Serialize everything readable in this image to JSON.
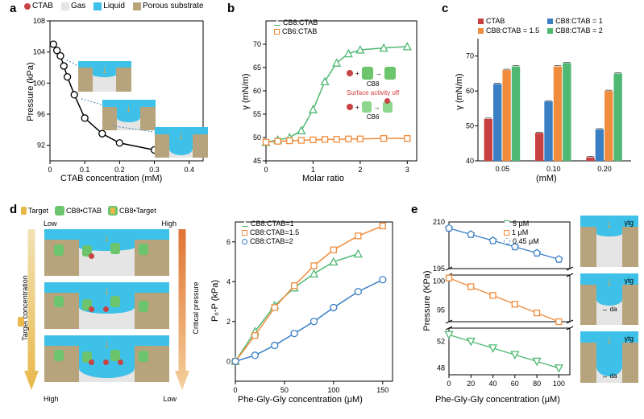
{
  "legend_top": {
    "ctab": "CTAB",
    "gas": "Gas",
    "liquid": "Liquid",
    "porous": "Porous substrate",
    "ctab_color": "#c84343",
    "gas_color": "#e5e5e5",
    "liquid_color": "#3ec1e8",
    "porous_color": "#b7a47d"
  },
  "panel_a": {
    "label": "a",
    "xlabel": "CTAB concentration (mM)",
    "ylabel": "Pressure (kPa)",
    "xlim": [
      0,
      0.44
    ],
    "ylim": [
      90,
      108
    ],
    "xticks": [
      0,
      0.1,
      0.2,
      0.3,
      0.4
    ],
    "yticks": [
      92,
      96,
      100,
      104,
      108
    ],
    "points_x": [
      0.01,
      0.02,
      0.03,
      0.04,
      0.05,
      0.07,
      0.1,
      0.15,
      0.2,
      0.3,
      0.4
    ],
    "points_y": [
      105,
      104.2,
      103.5,
      102.2,
      100.8,
      98.5,
      95.5,
      93.5,
      92.3,
      91.4,
      91
    ],
    "line_color": "#000000",
    "marker_fill": "#ffffff",
    "marker_edge": "#000000",
    "background": "#ffffff",
    "axis_color": "#000000"
  },
  "panel_b": {
    "label": "b",
    "xlabel": "Molar ratio",
    "ylabel": "γ (mN/m)",
    "xlim": [
      0,
      3.2
    ],
    "ylim": [
      45,
      75
    ],
    "xticks": [
      0,
      1,
      2,
      3
    ],
    "yticks": [
      45,
      50,
      55,
      60,
      65,
      70
    ],
    "series": [
      {
        "name": "CB8:CTAB",
        "color": "#4fb873",
        "marker": "triangle",
        "x": [
          0,
          0.25,
          0.5,
          0.75,
          1.0,
          1.25,
          1.5,
          1.75,
          2.0,
          2.5,
          3.0
        ],
        "y": [
          49,
          49.5,
          50,
          51.5,
          56,
          62,
          66,
          68,
          68.8,
          69.2,
          69.5
        ]
      },
      {
        "name": "CB6:CTAB",
        "color": "#f08c3c",
        "marker": "square",
        "x": [
          0,
          0.25,
          0.5,
          0.75,
          1.0,
          1.25,
          1.5,
          1.75,
          2.0,
          2.5,
          3.0
        ],
        "y": [
          49,
          49.2,
          49.3,
          49.4,
          49.5,
          49.6,
          49.6,
          49.7,
          49.7,
          49.8,
          49.8
        ]
      }
    ],
    "inset_label1": "CB8",
    "inset_label2": "CB6",
    "inset_text": "Surface activity off",
    "inset_text_color": "#d83a3a"
  },
  "panel_c": {
    "label": "c",
    "xlabel": "(mM)",
    "ylabel": "γ (mN/m)",
    "xlim_categories": [
      "0.05",
      "0.10",
      "0.20"
    ],
    "ylim": [
      40,
      75
    ],
    "yticks": [
      40,
      50,
      60,
      70
    ],
    "series": [
      {
        "name": "CTAB",
        "color": "#c94040"
      },
      {
        "name": "CB8:CTAB = 1",
        "color": "#3a7fc4"
      },
      {
        "name": "CB8:CTAB = 1.5",
        "color": "#f08c3c"
      },
      {
        "name": "CB8:CTAB = 2",
        "color": "#4fb873"
      }
    ],
    "groups": [
      {
        "cat": "0.05",
        "vals": [
          52,
          62,
          66,
          67
        ]
      },
      {
        "cat": "0.10",
        "vals": [
          48,
          57,
          67,
          68
        ]
      },
      {
        "cat": "0.20",
        "vals": [
          41,
          49,
          60,
          65
        ]
      }
    ]
  },
  "panel_d": {
    "label": "d",
    "diagram_labels": {
      "target": "Target",
      "c1": "CB8•CTAB",
      "c2": "CB8•Target",
      "left_arrow": "Target concentration",
      "right_arrow": "Critical pressure",
      "low": "Low",
      "high": "High"
    },
    "chart": {
      "xlabel": "Phe-Gly-Gly concentration (μM)",
      "ylabel": "P₀-P  (kPa)",
      "xlim": [
        0,
        160
      ],
      "ylim": [
        -1,
        7
      ],
      "xticks": [
        0,
        50,
        100,
        150
      ],
      "yticks": [
        0,
        2,
        4,
        6
      ],
      "series": [
        {
          "name": "CB8:CTAB=1",
          "color": "#4fb873",
          "marker": "triangle",
          "x": [
            0,
            20,
            40,
            60,
            80,
            100,
            125
          ],
          "y": [
            0,
            1.5,
            2.8,
            3.7,
            4.4,
            5.0,
            5.4
          ]
        },
        {
          "name": "CB8:CTAB=1.5",
          "color": "#f08c3c",
          "marker": "square",
          "x": [
            0,
            20,
            40,
            60,
            80,
            100,
            125,
            150
          ],
          "y": [
            0,
            1.3,
            2.7,
            3.8,
            4.8,
            5.6,
            6.3,
            6.8
          ]
        },
        {
          "name": "CB8:CTAB=2",
          "color": "#3a7fc4",
          "marker": "circle",
          "x": [
            0,
            20,
            40,
            60,
            80,
            100,
            125,
            150
          ],
          "y": [
            0,
            0.3,
            0.8,
            1.4,
            2.0,
            2.7,
            3.5,
            4.1
          ]
        }
      ]
    }
  },
  "panel_e": {
    "label": "e",
    "xlabel": "Phe-Gly-Gly concentration (μM)",
    "ylabel": "Pressure (KPa)",
    "xlim": [
      0,
      110
    ],
    "xticks": [
      0,
      20,
      40,
      60,
      80,
      100
    ],
    "segments": [
      {
        "ylim": [
          195,
          210
        ],
        "yticks": [
          195,
          210
        ]
      },
      {
        "ylim": [
          93,
          101
        ],
        "yticks": [
          95,
          100
        ]
      },
      {
        "ylim": [
          47,
          54
        ],
        "yticks": [
          48,
          52
        ]
      }
    ],
    "series": [
      {
        "name": "5 μM",
        "color": "#4fb873",
        "marker": "triangle-down",
        "x": [
          0,
          20,
          40,
          60,
          80,
          100
        ],
        "y": [
          53,
          52,
          51,
          50,
          49,
          48
        ]
      },
      {
        "name": "1 μM",
        "color": "#f08c3c",
        "marker": "square",
        "x": [
          0,
          20,
          40,
          60,
          80,
          100
        ],
        "y": [
          100.5,
          99,
          97.5,
          96,
          94.5,
          93
        ]
      },
      {
        "name": "0.45 μM",
        "color": "#3a7fc4",
        "marker": "pentagon",
        "x": [
          0,
          20,
          40,
          60,
          80,
          100
        ],
        "y": [
          208,
          206,
          204,
          202,
          200,
          198
        ]
      }
    ],
    "diagram_labels": {
      "ylg": "γlg",
      "da": "da"
    }
  }
}
